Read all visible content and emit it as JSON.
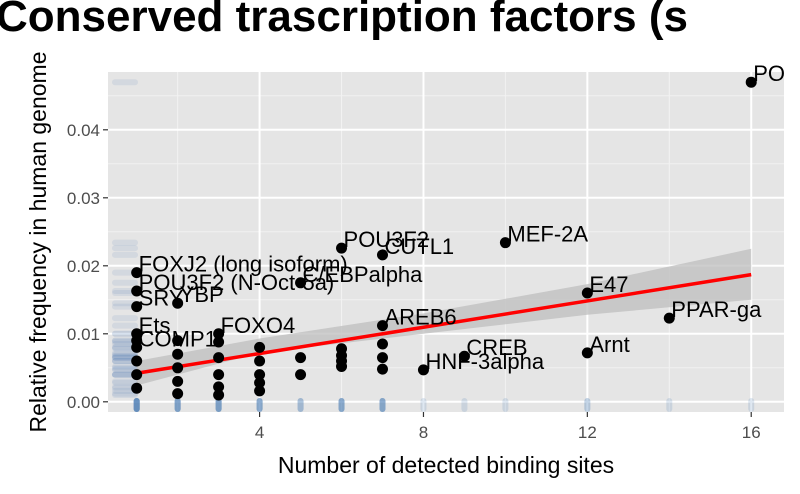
{
  "chart_data": {
    "type": "scatter",
    "title": "Conserved trascription factors (s",
    "xlabel": "Number of detected binding sites",
    "ylabel": "Relative frequency in human genome",
    "xlim": [
      0.3,
      16.8
    ],
    "ylim": [
      -0.0015,
      0.0485
    ],
    "xticks": [
      4,
      8,
      12,
      16
    ],
    "xtick_labels": [
      "4",
      "8",
      "12",
      "16"
    ],
    "yticks": [
      0.0,
      0.01,
      0.02,
      0.03,
      0.04
    ],
    "ytick_labels": [
      "0.00",
      "0.01",
      "0.02",
      "0.03",
      "0.04"
    ],
    "grid": true,
    "background": "#e5e5e5",
    "point_color": "#000000",
    "fit_line": {
      "color": "#ff0000",
      "x": [
        1,
        16
      ],
      "y": [
        0.0042,
        0.0187
      ]
    },
    "fit_band": {
      "color": "#bdbdbd",
      "x": [
        1,
        4,
        8,
        12,
        16
      ],
      "upper": [
        0.006,
        0.0093,
        0.013,
        0.0173,
        0.0225
      ],
      "lower": [
        0.0024,
        0.0072,
        0.01,
        0.0128,
        0.015
      ]
    },
    "rug_color": "#4f7fb8",
    "points": [
      {
        "x": 16,
        "y": 0.047,
        "label": "PO"
      },
      {
        "x": 10,
        "y": 0.0234,
        "label": "MEF-2A"
      },
      {
        "x": 6,
        "y": 0.0226,
        "label": "POU3F2"
      },
      {
        "x": 7,
        "y": 0.0216,
        "label": "CUTL1"
      },
      {
        "x": 1,
        "y": 0.019,
        "label": "FOXJ2 (long isoform)"
      },
      {
        "x": 5,
        "y": 0.0175,
        "label": "C/EBPalpha"
      },
      {
        "x": 1,
        "y": 0.0163,
        "label": "POU3F2 (N-Oct-5a)"
      },
      {
        "x": 12,
        "y": 0.016,
        "label": "E47"
      },
      {
        "x": 2,
        "y": 0.0145,
        "label": "YBP"
      },
      {
        "x": 1,
        "y": 0.014,
        "label": "SRY"
      },
      {
        "x": 14,
        "y": 0.0123,
        "label": "PPAR-ga"
      },
      {
        "x": 7,
        "y": 0.0112,
        "label": "AREB6"
      },
      {
        "x": 1,
        "y": 0.01,
        "label": "Ets"
      },
      {
        "x": 3,
        "y": 0.01,
        "label": "FOXO4"
      },
      {
        "x": 1,
        "y": 0.008,
        "label": "COMP1"
      },
      {
        "x": 12,
        "y": 0.0072,
        "label": "Arnt"
      },
      {
        "x": 9,
        "y": 0.0067,
        "label": "CREB"
      },
      {
        "x": 8,
        "y": 0.0047,
        "label": "HNF-3alpha"
      },
      {
        "x": 1,
        "y": 0.009
      },
      {
        "x": 1,
        "y": 0.006
      },
      {
        "x": 1,
        "y": 0.004
      },
      {
        "x": 1,
        "y": 0.002
      },
      {
        "x": 2,
        "y": 0.009
      },
      {
        "x": 2,
        "y": 0.007
      },
      {
        "x": 2,
        "y": 0.005
      },
      {
        "x": 2,
        "y": 0.003
      },
      {
        "x": 2,
        "y": 0.0012
      },
      {
        "x": 3,
        "y": 0.0088
      },
      {
        "x": 3,
        "y": 0.0065
      },
      {
        "x": 3,
        "y": 0.004
      },
      {
        "x": 3,
        "y": 0.0022
      },
      {
        "x": 3,
        "y": 0.001
      },
      {
        "x": 4,
        "y": 0.008
      },
      {
        "x": 4,
        "y": 0.006
      },
      {
        "x": 4,
        "y": 0.004
      },
      {
        "x": 4,
        "y": 0.0028
      },
      {
        "x": 4,
        "y": 0.0016
      },
      {
        "x": 5,
        "y": 0.0065
      },
      {
        "x": 5,
        "y": 0.004
      },
      {
        "x": 6,
        "y": 0.0078
      },
      {
        "x": 6,
        "y": 0.0068
      },
      {
        "x": 6,
        "y": 0.006
      },
      {
        "x": 6,
        "y": 0.0052
      },
      {
        "x": 7,
        "y": 0.0085
      },
      {
        "x": 7,
        "y": 0.0065
      },
      {
        "x": 7,
        "y": 0.0048
      }
    ]
  }
}
